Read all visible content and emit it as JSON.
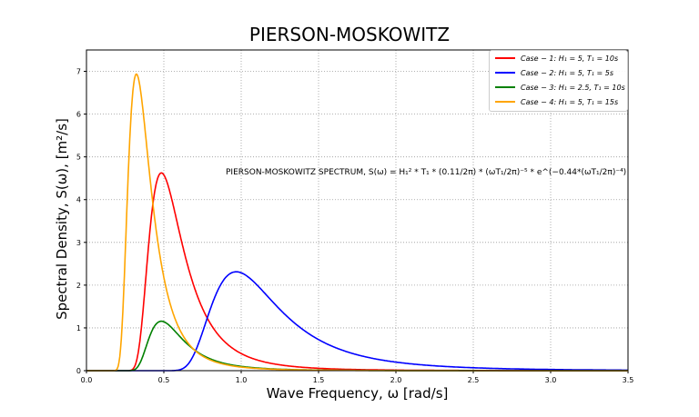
{
  "chart_data": {
    "type": "line",
    "title": "PIERSON-MOSKOWITZ",
    "xlabel": "Wave Frequency, ω [rad/s]",
    "ylabel": "Spectral Density, S(ω), [m²/s]",
    "xlim": [
      0,
      3.5
    ],
    "ylim": [
      0,
      7.5
    ],
    "xticks": [
      "0.0",
      "0.5",
      "1.0",
      "1.5",
      "2.0",
      "2.5",
      "3.0",
      "3.5"
    ],
    "yticks": [
      "0",
      "1",
      "2",
      "3",
      "4",
      "5",
      "6",
      "7"
    ],
    "grid": true,
    "legend_position": "top-right",
    "annotation": "PIERSON-MOSKOWITZ SPECTRUM, S(ω) = H₁² * T₁ * (0.11/2π) * (ωT₁/2π)⁻⁵ * e^(−0.44*(ωT₁/2π)⁻⁴)",
    "series": [
      {
        "name": "Case − 1: H₁ = 5, T₁ = 10s",
        "Hs": 5,
        "T1": 10,
        "color": "#ff0000",
        "peak": [
          0.48,
          4.63
        ]
      },
      {
        "name": "Case − 2: H₁ = 5, T₁ = 5s",
        "Hs": 5,
        "T1": 5,
        "color": "#0000ff",
        "peak": [
          0.97,
          2.31
        ]
      },
      {
        "name": "Case − 3: H₁ = 2.5, T₁ = 10s",
        "Hs": 2.5,
        "T1": 10,
        "color": "#008000",
        "peak": [
          0.48,
          1.16
        ]
      },
      {
        "name": "Case − 4: H₁ = 5, T₁ = 15s",
        "Hs": 5,
        "T1": 15,
        "color": "#ffa500",
        "peak": [
          0.32,
          6.94
        ]
      }
    ]
  }
}
